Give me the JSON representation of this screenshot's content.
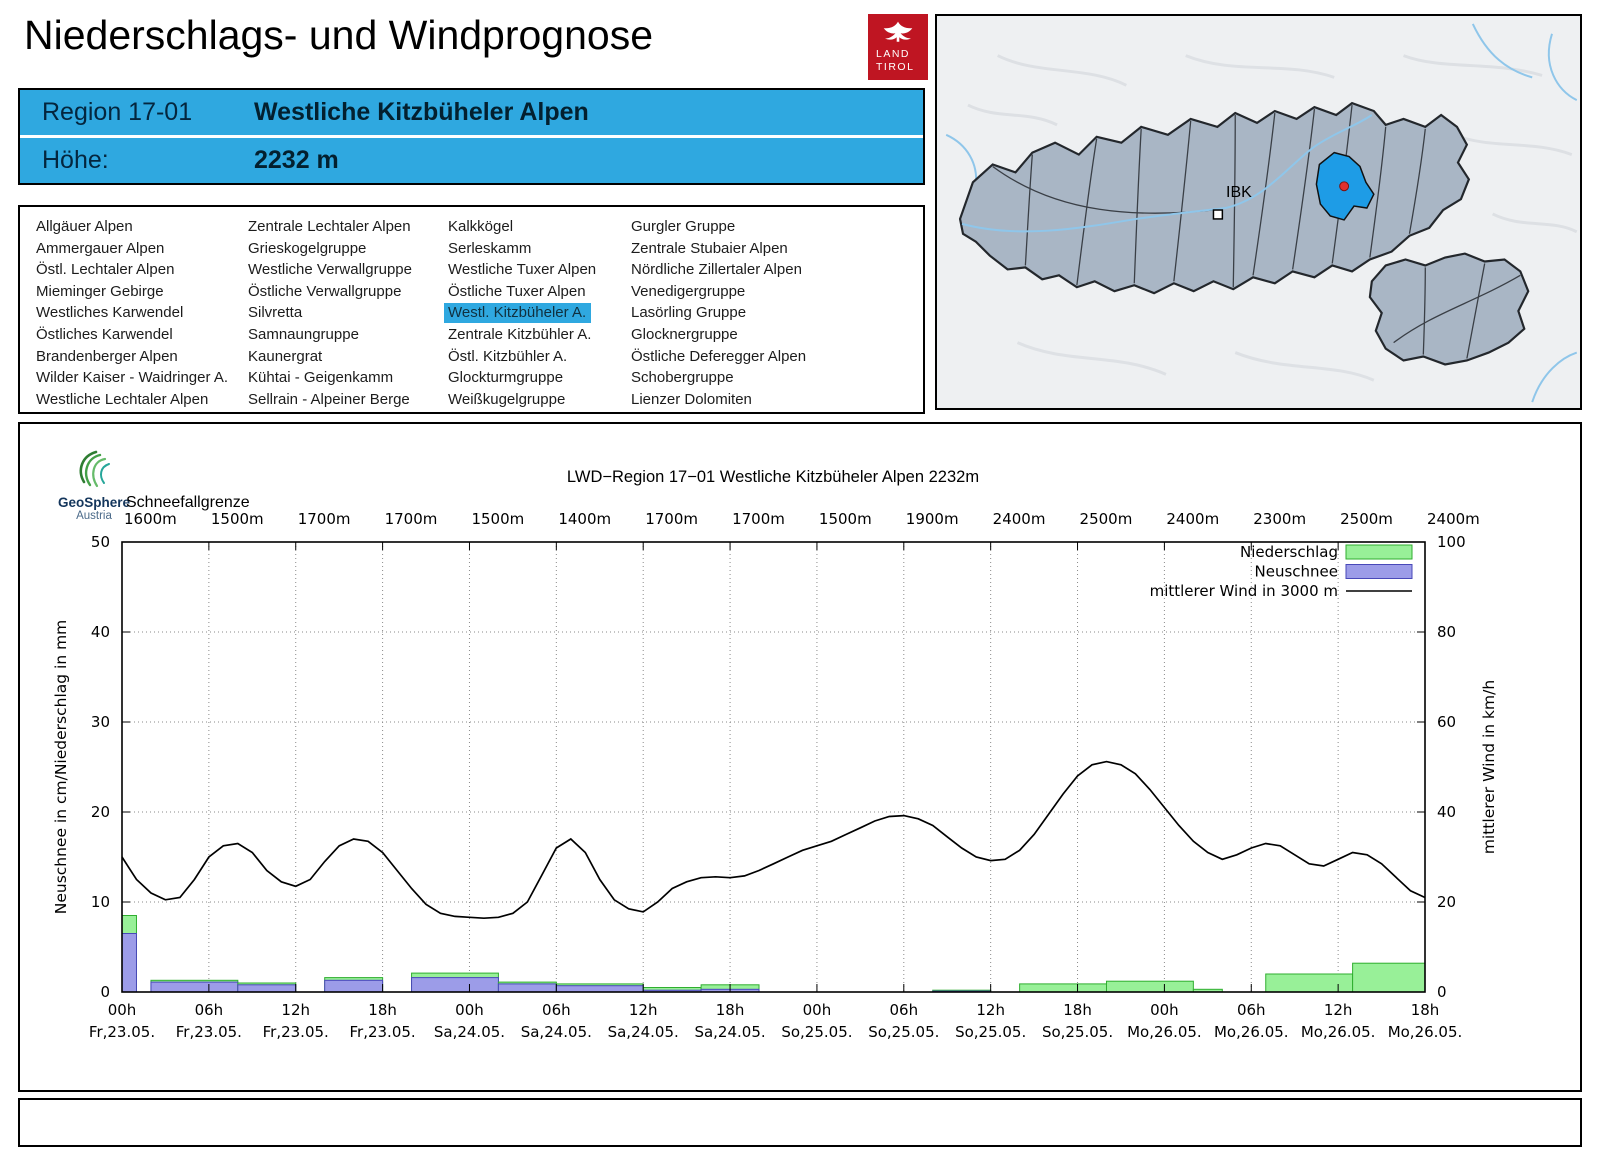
{
  "header": {
    "title": "Niederschlags- und Windprognose",
    "logo": {
      "line1": "LAND",
      "line2": "TIROL"
    }
  },
  "region_info": {
    "region_label": "Region 17-01",
    "region_name": "Westliche Kitzbüheler Alpen",
    "altitude_label": "Höhe:",
    "altitude_value": "2232 m"
  },
  "region_list": {
    "selected": "Westl. Kitzbüheler A.",
    "columns": [
      [
        "Allgäuer Alpen",
        "Ammergauer Alpen",
        "Östl. Lechtaler Alpen",
        "Mieminger Gebirge",
        "Westliches Karwendel",
        "Östliches Karwendel",
        "Brandenberger Alpen",
        "Wilder Kaiser - Waidringer A.",
        "Westliche Lechtaler Alpen"
      ],
      [
        "Zentrale Lechtaler Alpen",
        "Grieskogelgruppe",
        "Westliche Verwallgruppe",
        "Östliche Verwallgruppe",
        "Silvretta",
        "Samnaungruppe",
        "Kaunergrat",
        "Kühtai - Geigenkamm",
        "Sellrain - Alpeiner Berge"
      ],
      [
        "Kalkkögel",
        "Serleskamm",
        "Westliche Tuxer Alpen",
        "Östliche Tuxer Alpen",
        "Westl. Kitzbüheler A.",
        "Zentrale Kitzbühler A.",
        "Östl. Kitzbühler A.",
        "Glockturmgruppe",
        "Weißkugelgruppe"
      ],
      [
        "Gurgler Gruppe",
        "Zentrale Stubaier Alpen",
        "Nördliche Zillertaler Alpen",
        "Venedigergruppe",
        "Lasörling Gruppe",
        "Glocknergruppe",
        "Östliche Deferegger Alpen",
        "Schobergruppe",
        "Lienzer Dolomiten"
      ]
    ]
  },
  "map": {
    "ibk_label": "IBK",
    "selected_region_color": "#1e9ce6",
    "marker_color": "#e0312e"
  },
  "geosphere": {
    "name": "GeoSphere",
    "country": "Austria"
  },
  "chart_data": {
    "type": "composite",
    "title": "LWD−Region 17−01 Westliche Kitzbüheler Alpen 2232m",
    "snowline_label": "Schneefallgrenze",
    "snowline_values": [
      "1600m",
      "1500m",
      "1700m",
      "1700m",
      "1500m",
      "1400m",
      "1700m",
      "1700m",
      "1500m",
      "1900m",
      "2400m",
      "2500m",
      "2400m",
      "2300m",
      "2500m",
      "2400m"
    ],
    "x_ticks": [
      {
        "hour": "00h",
        "date": "Fr,23.05."
      },
      {
        "hour": "06h",
        "date": "Fr,23.05."
      },
      {
        "hour": "12h",
        "date": "Fr,23.05."
      },
      {
        "hour": "18h",
        "date": "Fr,23.05."
      },
      {
        "hour": "00h",
        "date": "Sa,24.05."
      },
      {
        "hour": "06h",
        "date": "Sa,24.05."
      },
      {
        "hour": "12h",
        "date": "Sa,24.05."
      },
      {
        "hour": "18h",
        "date": "Sa,24.05."
      },
      {
        "hour": "00h",
        "date": "So,25.05."
      },
      {
        "hour": "06h",
        "date": "So,25.05."
      },
      {
        "hour": "12h",
        "date": "So,25.05."
      },
      {
        "hour": "18h",
        "date": "So,25.05."
      },
      {
        "hour": "00h",
        "date": "Mo,26.05."
      },
      {
        "hour": "06h",
        "date": "Mo,26.05."
      },
      {
        "hour": "12h",
        "date": "Mo,26.05."
      },
      {
        "hour": "18h",
        "date": "Mo,26.05."
      }
    ],
    "x_span_hours": 90,
    "ylabel_left": "Neuschnee in cm/Niederschlag in mm",
    "ylabel_right": "mittlerer Wind in km/h",
    "ylim_left": [
      0,
      50
    ],
    "ylim_right": [
      0,
      100
    ],
    "grid": "dotted",
    "legend_position": "top-right",
    "legend": [
      {
        "label": "Niederschlag",
        "type": "box",
        "color": "#98f098",
        "border": "#2fae2f"
      },
      {
        "label": "Neuschnee",
        "type": "box",
        "color": "#9c9ce8",
        "border": "#4848b8"
      },
      {
        "label": "mittlerer Wind in 3000 m",
        "type": "line",
        "color": "#000000"
      }
    ],
    "bars": [
      {
        "start": 0,
        "end": 1,
        "niederschlag": 8.5,
        "neuschnee": 6.5
      },
      {
        "start": 2,
        "end": 8,
        "niederschlag": 1.3,
        "neuschnee": 1.1
      },
      {
        "start": 8,
        "end": 12,
        "niederschlag": 1.0,
        "neuschnee": 0.8
      },
      {
        "start": 14,
        "end": 18,
        "niederschlag": 1.6,
        "neuschnee": 1.3
      },
      {
        "start": 20,
        "end": 26,
        "niederschlag": 2.1,
        "neuschnee": 1.6
      },
      {
        "start": 26,
        "end": 30,
        "niederschlag": 1.1,
        "neuschnee": 0.9
      },
      {
        "start": 30,
        "end": 36,
        "niederschlag": 0.9,
        "neuschnee": 0.7
      },
      {
        "start": 36,
        "end": 40,
        "niederschlag": 0.5,
        "neuschnee": 0.2
      },
      {
        "start": 40,
        "end": 44,
        "niederschlag": 0.8,
        "neuschnee": 0.3
      },
      {
        "start": 56,
        "end": 60,
        "niederschlag": 0.2,
        "neuschnee": 0.1
      },
      {
        "start": 62,
        "end": 68,
        "niederschlag": 0.9,
        "neuschnee": 0
      },
      {
        "start": 68,
        "end": 74,
        "niederschlag": 1.2,
        "neuschnee": 0
      },
      {
        "start": 74,
        "end": 76,
        "niederschlag": 0.3,
        "neuschnee": 0
      },
      {
        "start": 79,
        "end": 85,
        "niederschlag": 2.0,
        "neuschnee": 0
      },
      {
        "start": 85,
        "end": 90,
        "niederschlag": 3.2,
        "neuschnee": 0
      }
    ],
    "wind_kmh": [
      [
        0,
        30
      ],
      [
        1,
        25
      ],
      [
        2,
        22
      ],
      [
        3,
        20.5
      ],
      [
        4,
        21
      ],
      [
        5,
        25
      ],
      [
        6,
        30
      ],
      [
        7,
        32.5
      ],
      [
        8,
        33
      ],
      [
        9,
        31
      ],
      [
        10,
        27
      ],
      [
        11,
        24.5
      ],
      [
        12,
        23.5
      ],
      [
        13,
        25
      ],
      [
        14,
        29
      ],
      [
        15,
        32.5
      ],
      [
        16,
        34
      ],
      [
        17,
        33.5
      ],
      [
        18,
        31
      ],
      [
        19,
        27
      ],
      [
        20,
        23
      ],
      [
        21,
        19.5
      ],
      [
        22,
        17.5
      ],
      [
        23,
        16.8
      ],
      [
        24,
        16.6
      ],
      [
        25,
        16.4
      ],
      [
        26,
        16.6
      ],
      [
        27,
        17.5
      ],
      [
        28,
        20
      ],
      [
        29,
        26
      ],
      [
        30,
        32
      ],
      [
        31,
        34
      ],
      [
        32,
        31
      ],
      [
        33,
        25
      ],
      [
        34,
        20.5
      ],
      [
        35,
        18.5
      ],
      [
        36,
        17.8
      ],
      [
        37,
        20
      ],
      [
        38,
        23
      ],
      [
        39,
        24.5
      ],
      [
        40,
        25.4
      ],
      [
        41,
        25.6
      ],
      [
        42,
        25.4
      ],
      [
        43,
        25.8
      ],
      [
        44,
        27
      ],
      [
        45,
        28.5
      ],
      [
        46,
        30
      ],
      [
        47,
        31.5
      ],
      [
        48,
        32.5
      ],
      [
        49,
        33.5
      ],
      [
        50,
        35
      ],
      [
        51,
        36.5
      ],
      [
        52,
        38
      ],
      [
        53,
        39
      ],
      [
        54,
        39.2
      ],
      [
        55,
        38.5
      ],
      [
        56,
        37
      ],
      [
        57,
        34.5
      ],
      [
        58,
        32
      ],
      [
        59,
        30
      ],
      [
        60,
        29.2
      ],
      [
        61,
        29.5
      ],
      [
        62,
        31.5
      ],
      [
        63,
        35
      ],
      [
        64,
        39.5
      ],
      [
        65,
        44
      ],
      [
        66,
        48
      ],
      [
        67,
        50.5
      ],
      [
        68,
        51.2
      ],
      [
        69,
        50.5
      ],
      [
        70,
        48.5
      ],
      [
        71,
        45
      ],
      [
        72,
        41
      ],
      [
        73,
        37
      ],
      [
        74,
        33.5
      ],
      [
        75,
        31
      ],
      [
        76,
        29.5
      ],
      [
        77,
        30.5
      ],
      [
        78,
        32
      ],
      [
        79,
        33
      ],
      [
        80,
        32.5
      ],
      [
        81,
        30.5
      ],
      [
        82,
        28.5
      ],
      [
        83,
        28
      ],
      [
        84,
        29.5
      ],
      [
        85,
        31
      ],
      [
        86,
        30.5
      ],
      [
        87,
        28.5
      ],
      [
        88,
        25.5
      ],
      [
        89,
        22.5
      ],
      [
        90,
        21
      ]
    ]
  }
}
